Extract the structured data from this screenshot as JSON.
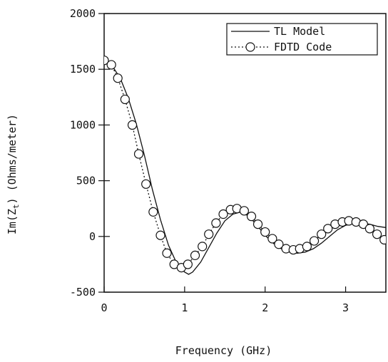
{
  "chart_data": {
    "type": "line",
    "xlabel": "Frequency (GHz)",
    "ylabel_main": "Im(Z",
    "ylabel_sub": "t",
    "ylabel_tail": ")  (Ohms/meter)",
    "xlim": [
      0,
      3.5
    ],
    "ylim": [
      -500,
      2000
    ],
    "xticks": [
      0,
      1,
      2,
      3
    ],
    "xtick_labels": [
      "0",
      "1",
      "2",
      "3"
    ],
    "yticks": [
      -500,
      0,
      500,
      1000,
      1500,
      2000
    ],
    "ytick_labels": [
      "-500",
      "0",
      "500",
      "1000",
      "1500",
      "2000"
    ],
    "grid": false,
    "legend_position": "top-right",
    "series": [
      {
        "name": "TL Model",
        "style": "solid",
        "color": "#111111",
        "x": [
          0,
          0.1,
          0.2,
          0.3,
          0.4,
          0.5,
          0.6,
          0.7,
          0.8,
          0.9,
          1.0,
          1.05,
          1.1,
          1.2,
          1.3,
          1.4,
          1.5,
          1.6,
          1.7,
          1.8,
          1.9,
          2.0,
          2.1,
          2.2,
          2.3,
          2.4,
          2.5,
          2.6,
          2.7,
          2.8,
          2.9,
          3.0,
          3.1,
          3.2,
          3.3,
          3.4,
          3.5
        ],
        "y": [
          1580,
          1530,
          1420,
          1240,
          1010,
          730,
          420,
          150,
          -80,
          -240,
          -320,
          -340,
          -320,
          -230,
          -100,
          30,
          140,
          200,
          220,
          180,
          100,
          10,
          -60,
          -110,
          -140,
          -150,
          -140,
          -110,
          -60,
          0,
          60,
          100,
          120,
          120,
          110,
          90,
          80
        ]
      },
      {
        "name": "FDTD Code",
        "style": "dotted",
        "marker": "circle",
        "color": "#111111",
        "x": [
          0,
          0.09,
          0.17,
          0.26,
          0.35,
          0.43,
          0.52,
          0.61,
          0.7,
          0.78,
          0.87,
          0.96,
          1.04,
          1.13,
          1.22,
          1.3,
          1.39,
          1.48,
          1.57,
          1.65,
          1.74,
          1.83,
          1.91,
          2.0,
          2.09,
          2.17,
          2.26,
          2.35,
          2.43,
          2.52,
          2.61,
          2.7,
          2.78,
          2.87,
          2.96,
          3.04,
          3.13,
          3.22,
          3.3,
          3.39,
          3.48
        ],
        "y": [
          1580,
          1540,
          1420,
          1230,
          1000,
          740,
          470,
          220,
          10,
          -150,
          -250,
          -280,
          -250,
          -170,
          -90,
          20,
          120,
          200,
          240,
          250,
          230,
          180,
          110,
          40,
          -20,
          -70,
          -110,
          -120,
          -110,
          -90,
          -40,
          20,
          70,
          110,
          130,
          140,
          130,
          110,
          70,
          20,
          -30
        ]
      }
    ]
  }
}
